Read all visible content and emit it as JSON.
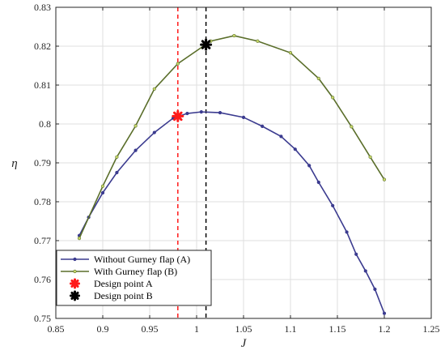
{
  "chart_data": {
    "type": "line",
    "xlabel": "J",
    "ylabel": "η",
    "xlim": [
      0.85,
      1.25
    ],
    "ylim": [
      0.75,
      0.83
    ],
    "x_ticks": [
      "0.85",
      "0.9",
      "0.95",
      "1",
      "1.05",
      "1.1",
      "1.15",
      "1.2",
      "1.25"
    ],
    "y_ticks": [
      "0.75",
      "0.76",
      "0.77",
      "0.78",
      "0.79",
      "0.8",
      "0.81",
      "0.82",
      "0.83"
    ],
    "grid": true,
    "legend_position": "bottom-left",
    "series": [
      {
        "name": "Without Gurney flap (A)",
        "color": "#3b3b8f",
        "x": [
          0.875,
          0.885,
          0.9,
          0.915,
          0.935,
          0.955,
          0.975,
          0.99,
          1.005,
          1.025,
          1.05,
          1.07,
          1.09,
          1.105,
          1.12,
          1.13,
          1.145,
          1.16,
          1.17,
          1.18,
          1.19,
          1.2
        ],
        "y": [
          0.7713,
          0.776,
          0.7823,
          0.7875,
          0.7932,
          0.7978,
          0.8015,
          0.8027,
          0.8031,
          0.8029,
          0.8017,
          0.7994,
          0.7968,
          0.7935,
          0.7893,
          0.785,
          0.779,
          0.7722,
          0.7665,
          0.7622,
          0.7575,
          0.7513
        ]
      },
      {
        "name": "With Gurney flap (B)",
        "color": "#5a6e2a",
        "marker_color": "#c8d86a",
        "x": [
          0.875,
          0.9,
          0.915,
          0.935,
          0.955,
          0.98,
          1.015,
          1.04,
          1.065,
          1.1,
          1.13,
          1.145,
          1.165,
          1.185,
          1.2
        ],
        "y": [
          0.7706,
          0.784,
          0.7915,
          0.7995,
          0.809,
          0.8155,
          0.8213,
          0.8227,
          0.8213,
          0.8183,
          0.8117,
          0.8068,
          0.7993,
          0.7915,
          0.7857
        ]
      }
    ],
    "annotations": [
      {
        "name": "Design point A",
        "x": 0.98,
        "y": 0.802,
        "color": "#ff1a1a",
        "vline_x": 0.98
      },
      {
        "name": "Design point B",
        "x": 1.01,
        "y": 0.8204,
        "color": "#000000",
        "vline_x": 1.01
      }
    ]
  }
}
